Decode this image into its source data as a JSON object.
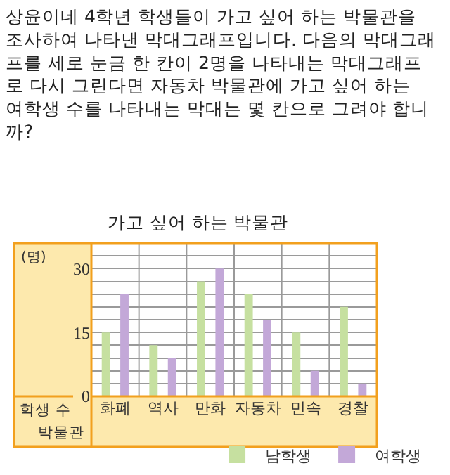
{
  "chart_data": {
    "type": "bar",
    "title": "가고 싶어 하는 박물관",
    "annotations": [
      "상윤이네 4학년 학생들이 가고 싶어 하는 박물관을\n조사하여 나타낸 막대그래프입니다. 다음의 막대그래\n프를 세로 눈금 한 칸이 2명을 나타내는 막대그래프\n로 다시 그린다면 자동차 박물관에 가고 싶어 하는\n여학생 수를 나타내는 막대는 몇 칸으로 그려야 합니\n까?",
      "(명)"
    ],
    "xlabel": "박물관",
    "ylabel": "학생 수",
    "categories": [
      "화폐",
      "역사",
      "만화",
      "자동차",
      "민속",
      "경찰"
    ],
    "series": [
      {
        "name": "남학생",
        "color": "#c6e0a0",
        "values": [
          15,
          12,
          27,
          24,
          15,
          21
        ]
      },
      {
        "name": "여학생",
        "color": "#c3a8d8",
        "values": [
          24,
          9,
          30,
          18,
          6,
          3
        ]
      }
    ],
    "ylim": [
      0,
      36
    ],
    "yticks": [
      0,
      {
        "value": 3,
        "label": null
      },
      {
        "value": 6,
        "label": null
      },
      {
        "value": 9,
        "label": null
      },
      {
        "value": 12,
        "label": null
      },
      15,
      {
        "value": 18,
        "label": null
      },
      {
        "value": 21,
        "label": null
      },
      {
        "value": 24,
        "label": null
      },
      {
        "value": 27,
        "label": null
      },
      30,
      {
        "value": 33,
        "label": null
      },
      {
        "value": 36,
        "label": null
      }
    ],
    "grid": true,
    "legend": "bottom right"
  }
}
